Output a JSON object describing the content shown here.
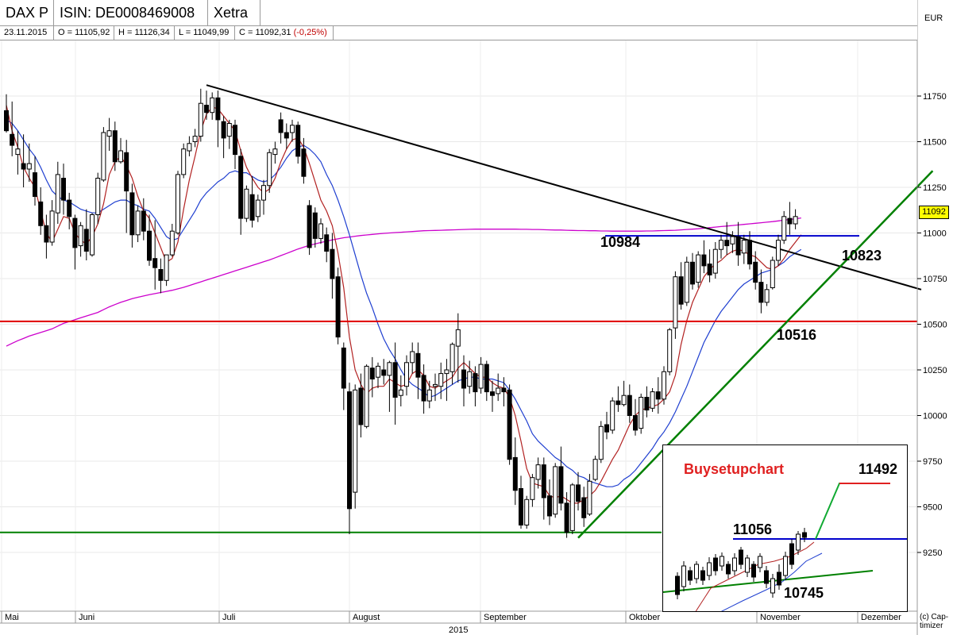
{
  "header": {
    "instrument": "DAX P",
    "isin": "ISIN: DE0008469008",
    "exchange": "Xetra"
  },
  "quote": {
    "date": "23.11.2015",
    "open": "O = 11105,92",
    "high": "H = 11126,34",
    "low": "L = 11049,99",
    "close": "C = 11092,31",
    "change": "(-0,25%)"
  },
  "currency": "EUR",
  "copyright": "(c) Cap-timizer",
  "last_price_tag": "11092",
  "annotations": {
    "a10984": "10984",
    "a10823": "10823",
    "a10516": "10516"
  },
  "chart_data": {
    "type": "candlestick",
    "ylim": [
      9170,
      11860
    ],
    "yticks": [
      9250,
      9500,
      9750,
      10000,
      10250,
      10500,
      10750,
      11000,
      11250,
      11500,
      11750
    ],
    "ytick_labels": [
      "9250",
      "9500",
      "9750",
      "10000",
      "10250",
      "10500",
      "10750",
      "11000",
      "11250",
      "11500",
      "11750"
    ],
    "x_months": [
      "Mai",
      "Juni",
      "Juli",
      "August",
      "September",
      "Oktober",
      "November",
      "Dezember"
    ],
    "x_year": "2015",
    "horizontal_levels": [
      {
        "value": 10516,
        "color": "#e00000"
      },
      {
        "value": 9360,
        "color": "#008000"
      },
      {
        "value": 10984,
        "color": "#0000cc"
      }
    ],
    "candles": [
      [
        11670,
        11760,
        11560,
        11550
      ],
      [
        11540,
        11720,
        11480,
        11420
      ],
      [
        11430,
        11560,
        11460,
        11320
      ],
      [
        11380,
        11540,
        11350,
        11250
      ],
      [
        11350,
        11490,
        11380,
        11280
      ],
      [
        11330,
        11420,
        11200,
        11150
      ],
      [
        11170,
        11250,
        11040,
        10990
      ],
      [
        11040,
        11100,
        10950,
        10860
      ],
      [
        10950,
        11180,
        11120,
        10930
      ],
      [
        11110,
        11390,
        11320,
        11050
      ],
      [
        11300,
        11380,
        11180,
        11100
      ],
      [
        11180,
        11220,
        11090,
        11020
      ],
      [
        11080,
        11100,
        10920,
        10800
      ],
      [
        10930,
        11060,
        11040,
        10870
      ],
      [
        11020,
        11130,
        10900,
        10850
      ],
      [
        10880,
        11110,
        11100,
        10870
      ],
      [
        11100,
        11330,
        11300,
        11050
      ],
      [
        11290,
        11580,
        11550,
        11280
      ],
      [
        11530,
        11630,
        11560,
        11450
      ],
      [
        11560,
        11610,
        11390,
        11340
      ],
      [
        11390,
        11520,
        11450,
        11380
      ],
      [
        11440,
        11510,
        11230,
        11000
      ],
      [
        11220,
        11270,
        10990,
        10920
      ],
      [
        10990,
        11150,
        11120,
        10950
      ],
      [
        11120,
        11190,
        11010,
        10960
      ],
      [
        11010,
        11100,
        10850,
        10820
      ],
      [
        10860,
        11070,
        10810,
        10690
      ],
      [
        10800,
        10860,
        10740,
        10670
      ],
      [
        10740,
        10830,
        10880,
        10710
      ],
      [
        10880,
        11050,
        11010,
        10870
      ],
      [
        11000,
        11340,
        11320,
        10990
      ],
      [
        11320,
        11490,
        11460,
        11300
      ],
      [
        11450,
        11530,
        11490,
        11420
      ],
      [
        11500,
        11570,
        11530,
        11470
      ],
      [
        11530,
        11790,
        11710,
        11500
      ],
      [
        11700,
        11780,
        11660,
        11620
      ],
      [
        11660,
        11770,
        11740,
        11620
      ],
      [
        11740,
        11780,
        11620,
        11470
      ],
      [
        11610,
        11640,
        11520,
        11410
      ],
      [
        11530,
        11620,
        11600,
        11460
      ],
      [
        11590,
        11620,
        11430,
        11350
      ],
      [
        11420,
        11460,
        11080,
        10990
      ],
      [
        11080,
        11260,
        11240,
        11060
      ],
      [
        11210,
        11310,
        11070,
        11030
      ],
      [
        11090,
        11210,
        11180,
        11060
      ],
      [
        11180,
        11290,
        11260,
        11100
      ],
      [
        11260,
        11460,
        11440,
        11220
      ],
      [
        11430,
        11500,
        11460,
        11380
      ],
      [
        11620,
        11660,
        11550,
        11490
      ],
      [
        11550,
        11600,
        11520,
        11460
      ],
      [
        11550,
        11620,
        11590,
        11500
      ],
      [
        11590,
        11610,
        11420,
        11380
      ],
      [
        11460,
        11520,
        11310,
        11270
      ],
      [
        11150,
        11180,
        10920,
        10880
      ],
      [
        11110,
        11140,
        10970,
        10920
      ],
      [
        10970,
        11080,
        11050,
        10940
      ],
      [
        10990,
        11030,
        10900,
        10840
      ],
      [
        10910,
        11000,
        10750,
        10640
      ],
      [
        10760,
        10810,
        10430,
        10390
      ],
      [
        10370,
        10400,
        10150,
        10030
      ],
      [
        10130,
        10180,
        9490,
        9350
      ],
      [
        9580,
        10170,
        10140,
        9490
      ],
      [
        10150,
        10230,
        9950,
        9880
      ],
      [
        9940,
        10280,
        10270,
        9930
      ],
      [
        10260,
        10320,
        10200,
        10100
      ],
      [
        10210,
        10290,
        10270,
        10150
      ],
      [
        10250,
        10310,
        10220,
        10170
      ],
      [
        10220,
        10300,
        10290,
        10020
      ],
      [
        10290,
        10400,
        10100,
        9950
      ],
      [
        10110,
        10220,
        10140,
        10050
      ],
      [
        10160,
        10330,
        10290,
        10110
      ],
      [
        10290,
        10400,
        10350,
        10230
      ],
      [
        10340,
        10400,
        10210,
        10090
      ],
      [
        10220,
        10280,
        10080,
        10010
      ],
      [
        10080,
        10190,
        10140,
        10040
      ],
      [
        10160,
        10230,
        10170,
        10080
      ],
      [
        10160,
        10290,
        10230,
        10090
      ],
      [
        10230,
        10310,
        10250,
        10080
      ],
      [
        10240,
        10400,
        10390,
        10170
      ],
      [
        10380,
        10560,
        10470,
        10180
      ],
      [
        10250,
        10330,
        10150,
        10050
      ],
      [
        10160,
        10300,
        10240,
        10120
      ],
      [
        10230,
        10270,
        10130,
        10050
      ],
      [
        10150,
        10320,
        10280,
        10120
      ],
      [
        10280,
        10300,
        10130,
        10080
      ],
      [
        10130,
        10190,
        10110,
        10020
      ],
      [
        10120,
        10230,
        10150,
        10080
      ],
      [
        10150,
        10210,
        10130,
        10050
      ],
      [
        10140,
        10170,
        9760,
        9730
      ],
      [
        9770,
        9880,
        9590,
        9510
      ],
      [
        9600,
        9670,
        9400,
        9380
      ],
      [
        9400,
        9560,
        9540,
        9380
      ],
      [
        9540,
        9680,
        9660,
        9500
      ],
      [
        9650,
        9770,
        9730,
        9600
      ],
      [
        9730,
        9770,
        9550,
        9430
      ],
      [
        9560,
        9650,
        9450,
        9400
      ],
      [
        9460,
        9740,
        9720,
        9440
      ],
      [
        9720,
        9830,
        9520,
        9480
      ],
      [
        9520,
        9580,
        9360,
        9330
      ],
      [
        9370,
        9630,
        9620,
        9350
      ],
      [
        9620,
        9690,
        9530,
        9480
      ],
      [
        9550,
        9610,
        9440,
        9390
      ],
      [
        9460,
        9680,
        9640,
        9450
      ],
      [
        9650,
        9780,
        9760,
        9640
      ],
      [
        9760,
        9970,
        9940,
        9740
      ],
      [
        9950,
        10020,
        9910,
        9870
      ],
      [
        9920,
        10100,
        10080,
        9900
      ],
      [
        10080,
        10160,
        10060,
        10020
      ],
      [
        10060,
        10190,
        10110,
        10050
      ],
      [
        10110,
        10170,
        10000,
        9960
      ],
      [
        10000,
        10090,
        9920,
        9890
      ],
      [
        9930,
        10120,
        10100,
        9900
      ],
      [
        10100,
        10160,
        10030,
        9990
      ],
      [
        10040,
        10150,
        10130,
        10020
      ],
      [
        10130,
        10210,
        10090,
        10010
      ],
      [
        10090,
        10270,
        10240,
        10060
      ],
      [
        10240,
        10480,
        10470,
        10220
      ],
      [
        10480,
        10790,
        10760,
        10420
      ],
      [
        10760,
        10840,
        10610,
        10580
      ],
      [
        10620,
        10870,
        10840,
        10600
      ],
      [
        10840,
        10890,
        10720,
        10690
      ],
      [
        10730,
        10900,
        10880,
        10700
      ],
      [
        10880,
        10960,
        10820,
        10780
      ],
      [
        10830,
        10910,
        10770,
        10730
      ],
      [
        10780,
        10950,
        10910,
        10750
      ],
      [
        10910,
        10990,
        10960,
        10860
      ],
      [
        10960,
        11060,
        10930,
        10880
      ],
      [
        10940,
        11010,
        10980,
        10890
      ],
      [
        10980,
        11060,
        10880,
        10820
      ],
      [
        10890,
        10990,
        10960,
        10830
      ],
      [
        10960,
        11010,
        10830,
        10800
      ],
      [
        10840,
        10900,
        10730,
        10690
      ],
      [
        10730,
        10800,
        10620,
        10560
      ],
      [
        10620,
        10720,
        10690,
        10600
      ],
      [
        10700,
        10870,
        10850,
        10690
      ],
      [
        10850,
        10990,
        10960,
        10820
      ],
      [
        10960,
        11120,
        11090,
        10940
      ],
      [
        11080,
        11170,
        11050,
        10990
      ],
      [
        11050,
        11130,
        11090,
        11020
      ]
    ],
    "ma_short_color": "#b22222",
    "ma_mid_color": "#1f3fd0",
    "ma_long_color": "#cc00cc",
    "ma_short": [
      11700,
      11560,
      11470,
      11360,
      11300,
      11250,
      11120,
      11000,
      10950,
      11020,
      11090,
      11080,
      11000,
      10960,
      10940,
      10980,
      11050,
      11160,
      11320,
      11390,
      11420,
      11370,
      11300,
      11200,
      11120,
      11080,
      11000,
      10920,
      10840,
      10860,
      10950,
      11130,
      11290,
      11420,
      11560,
      11650,
      11690,
      11680,
      11640,
      11600,
      11560,
      11450,
      11360,
      11300,
      11250,
      11220,
      11240,
      11300,
      11390,
      11460,
      11510,
      11520,
      11470,
      11380,
      11280,
      11180,
      11120,
      11040,
      10890,
      10700,
      10430,
      10250,
      10170,
      10120,
      10150,
      10160,
      10160,
      10200,
      10180,
      10160,
      10170,
      10230,
      10250,
      10220,
      10160,
      10150,
      10170,
      10190,
      10210,
      10260,
      10290,
      10260,
      10230,
      10210,
      10210,
      10180,
      10160,
      10150,
      10100,
      10000,
      9860,
      9710,
      9630,
      9620,
      9610,
      9560,
      9550,
      9560,
      9540,
      9520,
      9520,
      9540,
      9560,
      9590,
      9640,
      9700,
      9760,
      9810,
      9880,
      9950,
      10000,
      10030,
      10040,
      10050,
      10060,
      10090,
      10130,
      10220,
      10390,
      10520,
      10620,
      10690,
      10760,
      10800,
      10830,
      10850,
      10880,
      10900,
      10910,
      10900,
      10880,
      10870,
      10840,
      10810,
      10800,
      10820,
      10860,
      10910,
      10950,
      10990
    ],
    "ma_mid": [
      11620,
      11600,
      11560,
      11510,
      11460,
      11420,
      11360,
      11290,
      11230,
      11200,
      11180,
      11170,
      11150,
      11130,
      11120,
      11110,
      11110,
      11130,
      11150,
      11170,
      11180,
      11180,
      11160,
      11150,
      11130,
      11120,
      11080,
      11030,
      10980,
      10960,
      10970,
      11020,
      11070,
      11120,
      11180,
      11220,
      11250,
      11280,
      11300,
      11330,
      11340,
      11330,
      11330,
      11310,
      11290,
      11280,
      11290,
      11320,
      11360,
      11410,
      11450,
      11470,
      11480,
      11460,
      11430,
      11390,
      11320,
      11260,
      11180,
      11090,
      10990,
      10880,
      10770,
      10670,
      10590,
      10500,
      10420,
      10360,
      10310,
      10250,
      10200,
      10170,
      10150,
      10130,
      10100,
      10110,
      10130,
      10150,
      10170,
      10190,
      10200,
      10210,
      10210,
      10200,
      10200,
      10200,
      10190,
      10180,
      10140,
      10090,
      10030,
      9970,
      9900,
      9860,
      9830,
      9800,
      9770,
      9750,
      9720,
      9700,
      9670,
      9660,
      9640,
      9630,
      9620,
      9610,
      9610,
      9620,
      9650,
      9670,
      9700,
      9740,
      9780,
      9820,
      9870,
      9910,
      9960,
      10020,
      10090,
      10160,
      10240,
      10320,
      10400,
      10460,
      10520,
      10570,
      10610,
      10650,
      10690,
      10720,
      10740,
      10760,
      10780,
      10790,
      10800,
      10820,
      10840,
      10870,
      10890,
      10910
    ],
    "ma_long": [
      10380,
      10395,
      10410,
      10422,
      10435,
      10445,
      10455,
      10465,
      10475,
      10490,
      10505,
      10515,
      10525,
      10535,
      10545,
      10555,
      10565,
      10580,
      10595,
      10608,
      10620,
      10630,
      10640,
      10648,
      10655,
      10662,
      10668,
      10674,
      10680,
      10686,
      10694,
      10702,
      10712,
      10722,
      10732,
      10742,
      10752,
      10762,
      10772,
      10782,
      10792,
      10802,
      10812,
      10822,
      10832,
      10842,
      10852,
      10864,
      10876,
      10888,
      10900,
      10912,
      10922,
      10932,
      10940,
      10948,
      10955,
      10962,
      10968,
      10974,
      10978,
      10982,
      10986,
      10989,
      10992,
      10995,
      10998,
      11000,
      11002,
      11004,
      11006,
      11008,
      11010,
      11012,
      11013,
      11014,
      11015,
      11016,
      11017,
      11018,
      11019,
      11020,
      11021,
      11021,
      11021,
      11021,
      11021,
      11021,
      11021,
      11021,
      11020,
      11020,
      11019,
      11019,
      11018,
      11017,
      11016,
      11016,
      11015,
      11014,
      11013,
      11013,
      11012,
      11012,
      11011,
      11011,
      11010,
      11010,
      11010,
      11010,
      11010,
      11010,
      11011,
      11011,
      11012,
      11013,
      11014,
      11015,
      11017,
      11019,
      11021,
      11023,
      11026,
      11029,
      11032,
      11035,
      11038,
      11041,
      11044,
      11047,
      11050,
      11053,
      11056,
      11059,
      11062,
      11066,
      11070,
      11074,
      11078,
      11082
    ],
    "trend_resistance": {
      "from": [
        35,
        11810
      ],
      "to": [
        160,
        10690
      ],
      "color": "#000000"
    },
    "trend_support": {
      "from": [
        100,
        9330
      ],
      "to": [
        162,
        11340
      ],
      "color": "#008000"
    }
  },
  "inset": {
    "title": "Buysetupchart",
    "label_11056": "11056",
    "label_11492": "11492",
    "label_10745": "10745"
  }
}
